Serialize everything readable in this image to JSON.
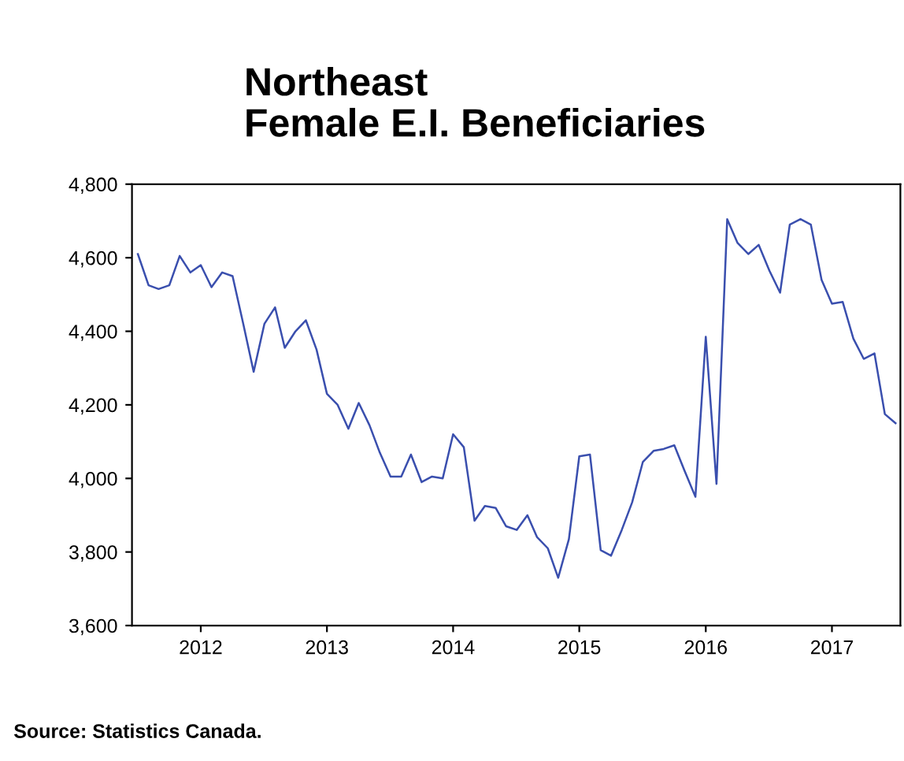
{
  "chart_data": {
    "type": "line",
    "title": "Northeast\nFemale E.I. Beneficiaries",
    "x": [
      "2012-01",
      "2012-02",
      "2012-03",
      "2012-04",
      "2012-05",
      "2012-06",
      "2012-07",
      "2012-08",
      "2012-09",
      "2012-10",
      "2012-11",
      "2012-12",
      "2013-01",
      "2013-02",
      "2013-03",
      "2013-04",
      "2013-05",
      "2013-06",
      "2013-07",
      "2013-08",
      "2013-09",
      "2013-10",
      "2013-11",
      "2013-12",
      "2014-01",
      "2014-02",
      "2014-03",
      "2014-04",
      "2014-05",
      "2014-06",
      "2014-07",
      "2014-08",
      "2014-09",
      "2014-10",
      "2014-11",
      "2014-12",
      "2015-01",
      "2015-02",
      "2015-03",
      "2015-04",
      "2015-05",
      "2015-06",
      "2015-07",
      "2015-08",
      "2015-09",
      "2015-10",
      "2015-11",
      "2015-12",
      "2016-01",
      "2016-02",
      "2016-03",
      "2016-04",
      "2016-05",
      "2016-06",
      "2016-07",
      "2016-08",
      "2016-09",
      "2016-10",
      "2016-11",
      "2016-12",
      "2017-01",
      "2017-02",
      "2017-03",
      "2017-04",
      "2017-05",
      "2017-06",
      "2017-07",
      "2017-08",
      "2017-09",
      "2017-10",
      "2017-11",
      "2017-12",
      "2018-01"
    ],
    "series": [
      {
        "color": "#3a4fae",
        "values": [
          4610,
          4525,
          4515,
          4525,
          4605,
          4560,
          4580,
          4520,
          4560,
          4550,
          4420,
          4290,
          4420,
          4465,
          4355,
          4400,
          4430,
          4350,
          4230,
          4200,
          4135,
          4205,
          4145,
          4070,
          4005,
          4005,
          4065,
          3990,
          4005,
          4000,
          4120,
          4085,
          3885,
          3925,
          3920,
          3870,
          3860,
          3900,
          3840,
          3810,
          3730,
          3835,
          4060,
          4065,
          3805,
          3790,
          3860,
          3935,
          4045,
          4075,
          4080,
          4090,
          4020,
          3950,
          4385,
          3985,
          4705,
          4640,
          4610,
          4635,
          4565,
          4505,
          4690,
          4705,
          4690,
          4540,
          4475,
          4480,
          4380,
          4325,
          4340,
          4175,
          4150
        ]
      }
    ],
    "xlim": [
      "2011-12-15",
      "2018-01-15"
    ],
    "xticks": [
      {
        "value": "2012-07-01",
        "label": "2012"
      },
      {
        "value": "2013-07-01",
        "label": "2013"
      },
      {
        "value": "2014-07-01",
        "label": "2014"
      },
      {
        "value": "2015-07-01",
        "label": "2015"
      },
      {
        "value": "2016-07-01",
        "label": "2016"
      },
      {
        "value": "2017-07-01",
        "label": "2017"
      }
    ],
    "ylim": [
      3600,
      4800
    ],
    "yticks": [
      {
        "value": 3600,
        "label": "3,600"
      },
      {
        "value": 3800,
        "label": "3,800"
      },
      {
        "value": 4000,
        "label": "4,000"
      },
      {
        "value": 4200,
        "label": "4,200"
      },
      {
        "value": 4400,
        "label": "4,400"
      },
      {
        "value": 4600,
        "label": "4,600"
      },
      {
        "value": 4800,
        "label": "4,800"
      }
    ],
    "grid": false,
    "annotations": [
      "Source: Statistics Canada."
    ]
  }
}
